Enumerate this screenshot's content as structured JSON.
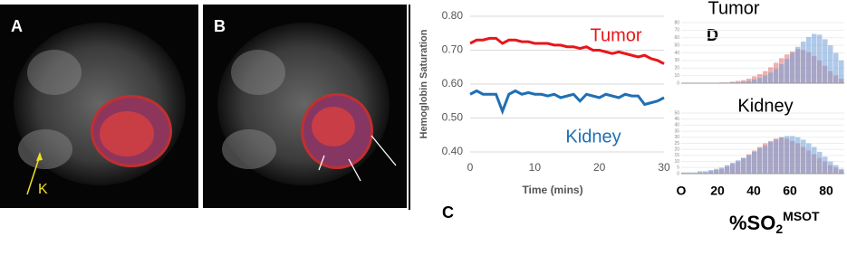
{
  "images": {
    "A": {
      "label": "A",
      "marker": "K"
    },
    "B": {
      "label": "B"
    }
  },
  "chart_data": [
    {
      "type": "line",
      "panel": "C",
      "y_label": "Hemoglobin Saturation",
      "x_label": "Time (mins)",
      "x": [
        0,
        1,
        2,
        3,
        4,
        5,
        6,
        7,
        8,
        9,
        10,
        11,
        12,
        13,
        14,
        15,
        16,
        17,
        18,
        19,
        20,
        21,
        22,
        23,
        24,
        25,
        26,
        27,
        28,
        29,
        30
      ],
      "series": [
        {
          "name": "Tumor",
          "color": "#e8161b",
          "values": [
            0.72,
            0.73,
            0.73,
            0.735,
            0.735,
            0.72,
            0.73,
            0.73,
            0.725,
            0.725,
            0.72,
            0.72,
            0.72,
            0.715,
            0.715,
            0.71,
            0.71,
            0.705,
            0.71,
            0.7,
            0.7,
            0.695,
            0.69,
            0.695,
            0.69,
            0.685,
            0.68,
            0.685,
            0.675,
            0.67,
            0.66
          ]
        },
        {
          "name": "Kidney",
          "color": "#1f6fb4",
          "values": [
            0.57,
            0.58,
            0.57,
            0.57,
            0.57,
            0.52,
            0.57,
            0.58,
            0.57,
            0.575,
            0.57,
            0.57,
            0.565,
            0.57,
            0.56,
            0.565,
            0.57,
            0.55,
            0.57,
            0.565,
            0.56,
            0.57,
            0.565,
            0.56,
            0.57,
            0.565,
            0.565,
            0.54,
            0.545,
            0.55,
            0.56
          ]
        }
      ],
      "xlim": [
        0,
        30
      ],
      "xticks": [
        0,
        10,
        20,
        30
      ],
      "ylim": [
        0.4,
        0.8
      ],
      "yticks": [
        {
          "value": 0.4,
          "label": "0.40"
        },
        {
          "value": 0.5,
          "label": "0.50"
        },
        {
          "value": 0.6,
          "label": "0.60"
        },
        {
          "value": 0.7,
          "label": "0.70"
        },
        {
          "value": 0.8,
          "label": "0.80"
        }
      ],
      "grid": true
    },
    {
      "type": "histogram",
      "panel": "D",
      "title": "Tumor",
      "bins": [
        0,
        3,
        6,
        9,
        12,
        15,
        18,
        21,
        24,
        27,
        30,
        33,
        36,
        39,
        42,
        45,
        48,
        51,
        54,
        57,
        60,
        63,
        66,
        69,
        72,
        75,
        78,
        81,
        84,
        87,
        90
      ],
      "series": [
        {
          "color": "#e07070",
          "values": [
            0,
            0,
            0,
            0,
            0,
            0,
            0,
            1,
            1,
            2,
            3,
            4,
            6,
            9,
            12,
            16,
            21,
            27,
            33,
            38,
            42,
            45,
            44,
            41,
            36,
            30,
            23,
            16,
            10,
            6
          ]
        },
        {
          "color": "#6f9fd8",
          "values": [
            0,
            0,
            0,
            0,
            0,
            0,
            0,
            0,
            0,
            1,
            1,
            2,
            3,
            5,
            7,
            10,
            14,
            19,
            25,
            32,
            40,
            48,
            55,
            61,
            65,
            64,
            58,
            50,
            40,
            30
          ]
        }
      ],
      "xlim": [
        0,
        90
      ],
      "ylim": [
        0,
        80
      ],
      "yticks": [
        0,
        10,
        20,
        30,
        40,
        50,
        60,
        70,
        80
      ]
    },
    {
      "type": "histogram",
      "title": "Kidney",
      "bins": [
        0,
        3,
        6,
        9,
        12,
        15,
        18,
        21,
        24,
        27,
        30,
        33,
        36,
        39,
        42,
        45,
        48,
        51,
        54,
        57,
        60,
        63,
        66,
        69,
        72,
        75,
        78,
        81,
        84,
        87,
        90
      ],
      "series": [
        {
          "color": "#e07070",
          "values": [
            0,
            0,
            0,
            1,
            1,
            2,
            3,
            4,
            6,
            8,
            10,
            13,
            16,
            19,
            22,
            25,
            27,
            29,
            30,
            29,
            27,
            25,
            22,
            19,
            16,
            13,
            10,
            7,
            5,
            3
          ]
        },
        {
          "color": "#6f9fd8",
          "values": [
            1,
            1,
            1,
            2,
            2,
            3,
            4,
            5,
            7,
            9,
            11,
            13,
            15,
            18,
            21,
            23,
            26,
            28,
            30,
            31,
            31,
            30,
            28,
            25,
            22,
            18,
            14,
            10,
            7,
            4
          ]
        }
      ],
      "xlim": [
        0,
        90
      ],
      "ylim": [
        0,
        50
      ],
      "yticks": [
        0,
        5,
        10,
        15,
        20,
        25,
        30,
        35,
        40,
        45,
        50
      ],
      "xticks": [
        {
          "value": 0,
          "label": "O"
        },
        20,
        40,
        60,
        80
      ],
      "x_label": "%SO",
      "x_label_sub": "2",
      "x_label_sup": "MSOT"
    }
  ]
}
